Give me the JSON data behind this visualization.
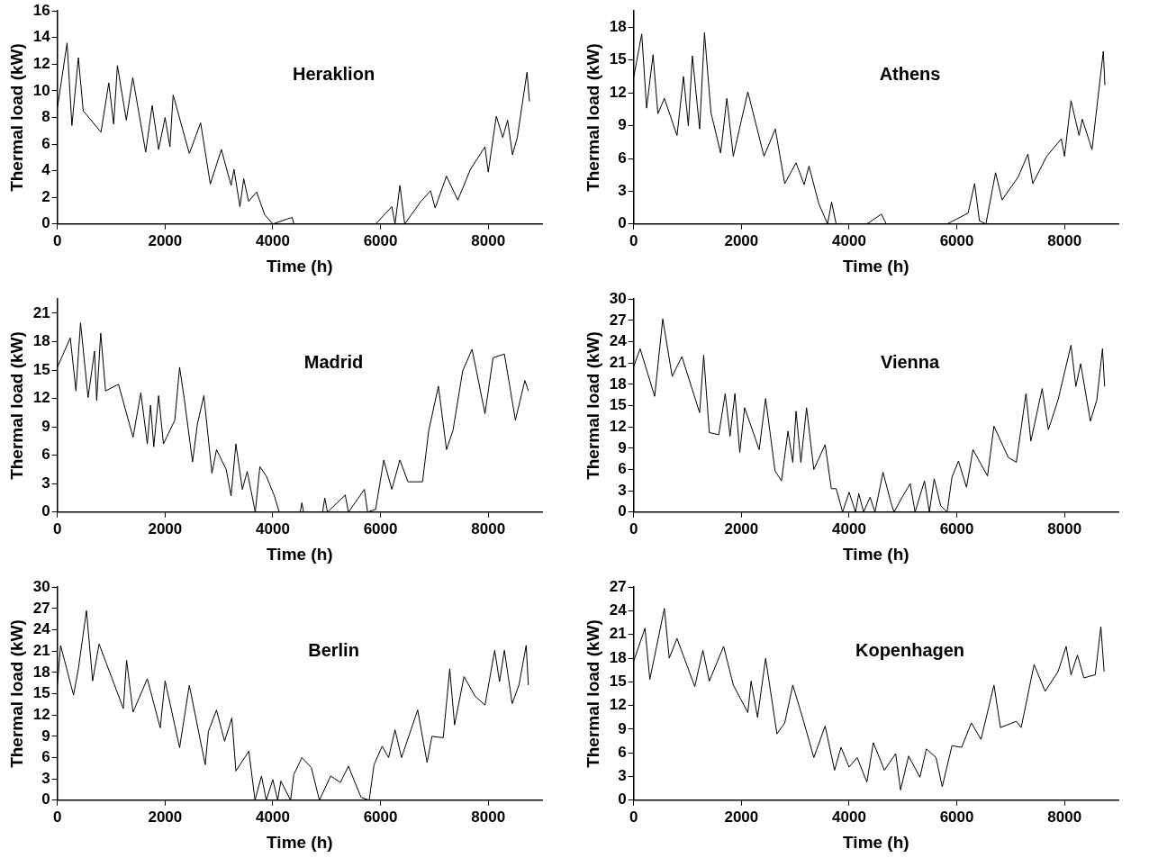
{
  "chart_data": [
    {
      "type": "line",
      "title": "Heraklion",
      "xlabel": "Time (h)",
      "ylabel": "Thermal load (kW)",
      "color": "#000000",
      "xlim": [
        0,
        9000
      ],
      "xticks": [
        0,
        2000,
        4000,
        6000,
        8000
      ],
      "ylim": [
        0,
        16
      ],
      "yticks": [
        0,
        2,
        4,
        6,
        8,
        10,
        12,
        14,
        16
      ],
      "x": [
        0,
        180,
        270,
        390,
        480,
        810,
        955,
        1045,
        1115,
        1280,
        1400,
        1640,
        1760,
        1880,
        2000,
        2090,
        2150,
        2450,
        2660,
        2840,
        3045,
        3225,
        3280,
        3390,
        3460,
        3550,
        3700,
        3850,
        4000,
        4360,
        4390,
        5910,
        6210,
        6270,
        6360,
        6450,
        6750,
        6930,
        7015,
        7225,
        7435,
        7670,
        7940,
        8000,
        8150,
        8270,
        8360,
        8450,
        8540,
        8720,
        8765
      ],
      "values": [
        8.7,
        13.6,
        7.4,
        12.5,
        8.5,
        6.9,
        10.6,
        7.5,
        11.9,
        7.8,
        11,
        5.4,
        8.9,
        5.6,
        8,
        5.8,
        9.7,
        5.3,
        7.6,
        3,
        5.6,
        2.9,
        4.1,
        1.3,
        3.4,
        1.7,
        2.4,
        0.7,
        0,
        0.5,
        0,
        0,
        1.3,
        0,
        2.9,
        0,
        1.7,
        2.5,
        1.2,
        3.6,
        1.8,
        4.1,
        5.8,
        3.9,
        8.1,
        6.5,
        7.8,
        5.2,
        6.5,
        11.4,
        9.2
      ]
    },
    {
      "type": "line",
      "title": "Athens",
      "xlabel": "Time (h)",
      "ylabel": "Thermal load (kW)",
      "color": "#000000",
      "xlim": [
        0,
        9000
      ],
      "xticks": [
        0,
        2000,
        4000,
        6000,
        8000
      ],
      "ylim": [
        0,
        19.5
      ],
      "yticks": [
        0,
        3,
        6,
        9,
        12,
        15,
        18
      ],
      "x": [
        0,
        150,
        240,
        360,
        450,
        570,
        805,
        925,
        1015,
        1090,
        1225,
        1315,
        1435,
        1615,
        1730,
        1850,
        2000,
        2120,
        2420,
        2630,
        2805,
        3015,
        3165,
        3255,
        3435,
        3600,
        3675,
        3760,
        4330,
        4600,
        4690,
        5820,
        6210,
        6330,
        6420,
        6540,
        6720,
        6840,
        7140,
        7320,
        7410,
        7670,
        7940,
        8000,
        8120,
        8270,
        8330,
        8510,
        8720,
        8750
      ],
      "values": [
        13.4,
        17.4,
        10.6,
        15.5,
        10.1,
        11.5,
        8.1,
        13.5,
        9,
        15.4,
        8.7,
        17.5,
        10.2,
        6.5,
        11.5,
        6.2,
        9.5,
        12.1,
        6.2,
        8.7,
        3.7,
        5.6,
        3.6,
        5.3,
        1.9,
        0,
        2,
        0,
        0,
        0.9,
        0,
        0,
        1,
        3.7,
        0.3,
        0,
        4.7,
        2.2,
        4.3,
        6.4,
        3.7,
        6.2,
        7.8,
        6.2,
        11.3,
        8.1,
        9.6,
        6.8,
        15.8,
        12.7
      ]
    },
    {
      "type": "line",
      "title": "Madrid",
      "xlabel": "Time (h)",
      "ylabel": "Thermal load (kW)",
      "color": "#000000",
      "xlim": [
        0,
        9000
      ],
      "xticks": [
        0,
        2000,
        4000,
        6000,
        8000
      ],
      "ylim": [
        0,
        22.5
      ],
      "yticks": [
        0,
        3,
        6,
        9,
        12,
        15,
        18,
        21
      ],
      "x": [
        0,
        240,
        345,
        430,
        570,
        690,
        730,
        805,
        895,
        1135,
        1405,
        1550,
        1670,
        1730,
        1790,
        1880,
        1970,
        2180,
        2270,
        2360,
        2510,
        2600,
        2720,
        2870,
        2955,
        3135,
        3225,
        3315,
        3435,
        3525,
        3675,
        3760,
        3880,
        4030,
        4120,
        4510,
        4540,
        4570,
        4925,
        4965,
        5015,
        5345,
        5405,
        5700,
        5760,
        5910,
        6060,
        6210,
        6360,
        6510,
        6780,
        6895,
        7075,
        7225,
        7345,
        7525,
        7700,
        7940,
        8090,
        8300,
        8505,
        8680,
        8745
      ],
      "values": [
        15.3,
        18.4,
        12.8,
        20,
        12.1,
        17,
        11.8,
        18.9,
        12.8,
        13.5,
        7.9,
        12.6,
        7.2,
        11.3,
        6.9,
        12.3,
        7.2,
        9.7,
        15.3,
        11.8,
        5.3,
        9.3,
        12.3,
        4.1,
        6.6,
        4.5,
        1.7,
        7.2,
        2.4,
        4.3,
        0,
        4.8,
        3.8,
        1.7,
        0,
        0,
        1,
        0,
        0,
        1.5,
        0,
        1.8,
        0,
        2.4,
        0,
        0.3,
        5.5,
        2.4,
        5.5,
        3.2,
        3.2,
        8.6,
        13.3,
        6.6,
        8.6,
        14.9,
        17.2,
        10.4,
        16.3,
        16.7,
        9.7,
        13.9,
        12.8
      ]
    },
    {
      "type": "line",
      "title": "Vienna",
      "xlabel": "Time (h)",
      "ylabel": "Thermal load (kW)",
      "color": "#000000",
      "xlim": [
        0,
        9000
      ],
      "xticks": [
        0,
        2000,
        4000,
        6000,
        8000
      ],
      "ylim": [
        0,
        30
      ],
      "yticks": [
        0,
        3,
        6,
        9,
        12,
        15,
        18,
        21,
        24,
        27,
        30
      ],
      "x": [
        0,
        120,
        390,
        540,
        715,
        895,
        1225,
        1300,
        1405,
        1580,
        1700,
        1790,
        1880,
        1970,
        2060,
        2330,
        2450,
        2625,
        2745,
        2865,
        2955,
        3015,
        3105,
        3210,
        3345,
        3555,
        3670,
        3760,
        3880,
        4000,
        4120,
        4180,
        4270,
        4390,
        4480,
        4630,
        4775,
        4835,
        4985,
        5135,
        5225,
        5400,
        5490,
        5580,
        5700,
        5820,
        5910,
        6030,
        6180,
        6300,
        6570,
        6690,
        6955,
        7105,
        7285,
        7375,
        7585,
        7700,
        7880,
        8120,
        8210,
        8300,
        8480,
        8600,
        8705,
        8745
      ],
      "values": [
        20.5,
        23,
        16.3,
        27.2,
        19.1,
        21.9,
        14,
        22.1,
        11.2,
        10.9,
        16.7,
        10.7,
        16.7,
        8.4,
        14.7,
        8.8,
        16,
        5.8,
        4.4,
        11.4,
        7,
        14.2,
        7,
        14.7,
        6,
        9.5,
        3.3,
        3.3,
        0,
        2.8,
        0,
        2.6,
        0,
        2.1,
        0,
        5.6,
        1.4,
        0,
        2.1,
        4,
        0,
        4.4,
        0,
        4.7,
        0.9,
        0,
        4.9,
        7.2,
        3.5,
        8.8,
        5.1,
        12.1,
        7.7,
        7,
        16.7,
        10,
        17.4,
        11.6,
        15.8,
        23.5,
        17.7,
        20.9,
        12.8,
        15.8,
        23,
        17.7
      ]
    },
    {
      "type": "line",
      "title": "Berlin",
      "xlabel": "Time (h)",
      "ylabel": "Thermal load (kW)",
      "color": "#000000",
      "xlim": [
        0,
        9000
      ],
      "xticks": [
        0,
        2000,
        4000,
        6000,
        8000
      ],
      "ylim": [
        0,
        30
      ],
      "yticks": [
        0,
        3,
        6,
        9,
        12,
        15,
        18,
        21,
        24,
        27,
        30
      ],
      "x": [
        0,
        60,
        300,
        390,
        540,
        655,
        775,
        1225,
        1285,
        1405,
        1670,
        1910,
        2000,
        2270,
        2450,
        2745,
        2805,
        2955,
        3105,
        3240,
        3315,
        3555,
        3670,
        3790,
        3880,
        4000,
        4090,
        4150,
        4330,
        4390,
        4540,
        4715,
        4865,
        5075,
        5255,
        5405,
        5525,
        5640,
        5790,
        5880,
        6030,
        6150,
        6270,
        6390,
        6690,
        6865,
        6955,
        7165,
        7285,
        7375,
        7550,
        7760,
        7940,
        8120,
        8210,
        8300,
        8445,
        8570,
        8705,
        8745
      ],
      "values": [
        16.2,
        21.8,
        14.8,
        18.5,
        26.7,
        16.8,
        22,
        12.9,
        19.7,
        12.4,
        17.1,
        10.2,
        16.8,
        7.4,
        16.2,
        5,
        9.7,
        12.7,
        8.3,
        11.6,
        4.1,
        6.9,
        0,
        3.4,
        0,
        2.9,
        0,
        2.7,
        0,
        3.6,
        6,
        4.6,
        0,
        3.4,
        2.5,
        4.8,
        2.5,
        0.4,
        0,
        5,
        7.6,
        6,
        9.9,
        6,
        12.7,
        5.3,
        9,
        8.8,
        18.5,
        10.6,
        17.4,
        14.6,
        13.4,
        21.1,
        16.7,
        21.1,
        13.6,
        16.2,
        21.8,
        16.2
      ]
    },
    {
      "type": "line",
      "title": "Kopenhagen",
      "xlabel": "Time (h)",
      "ylabel": "Thermal load (kW)",
      "color": "#000000",
      "xlim": [
        0,
        9000
      ],
      "xticks": [
        0,
        2000,
        4000,
        6000,
        8000
      ],
      "ylim": [
        0,
        27
      ],
      "yticks": [
        0,
        3,
        6,
        9,
        12,
        15,
        18,
        21,
        24,
        27
      ],
      "x": [
        0,
        210,
        300,
        570,
        660,
        805,
        1135,
        1285,
        1405,
        1670,
        1850,
        2120,
        2180,
        2300,
        2450,
        2660,
        2805,
        2955,
        3135,
        3345,
        3555,
        3730,
        3850,
        4000,
        4150,
        4330,
        4450,
        4655,
        4865,
        4955,
        5105,
        5315,
        5435,
        5615,
        5730,
        5910,
        6090,
        6270,
        6450,
        6690,
        6810,
        7105,
        7195,
        7435,
        7640,
        7880,
        8030,
        8120,
        8240,
        8360,
        8570,
        8675,
        8735
      ],
      "values": [
        17.6,
        21.8,
        15.3,
        24.3,
        18,
        20.5,
        14.4,
        19,
        15.1,
        19.5,
        14.6,
        11.1,
        15.1,
        10.5,
        18,
        8.4,
        9.8,
        14.6,
        10.5,
        5.4,
        9.4,
        3.8,
        6.7,
        4.2,
        5.4,
        2.3,
        7.3,
        3.8,
        5.9,
        1.3,
        5.6,
        2.9,
        6.5,
        5.4,
        1.7,
        6.9,
        6.7,
        9.8,
        7.7,
        14.6,
        9.2,
        10,
        9.2,
        17.2,
        13.8,
        16.3,
        19.5,
        15.9,
        18.4,
        15.5,
        15.9,
        22,
        16.3
      ]
    }
  ]
}
